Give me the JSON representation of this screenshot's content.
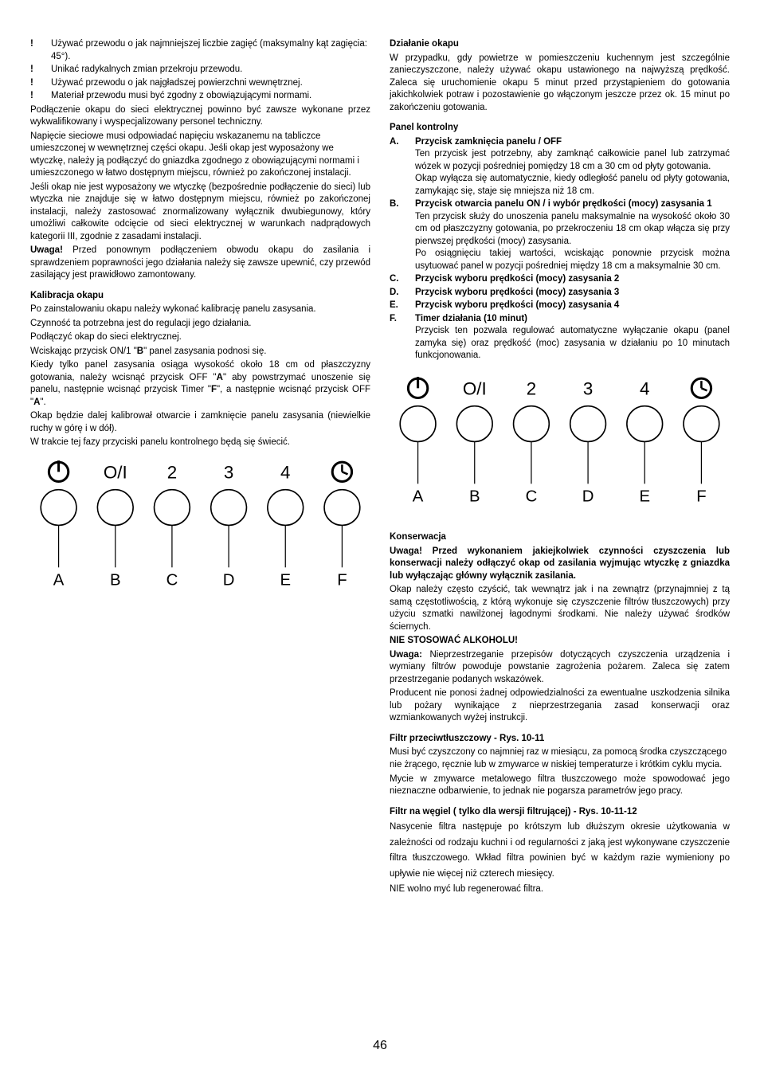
{
  "pageNumber": "46",
  "left": {
    "bullets": [
      "Używać przewodu o jak najmniejszej liczbie zagięć (maksymalny kąt zagięcia: 45°).",
      "Unikać radykalnych zmian przekroju przewodu.",
      "Używać przewodu o jak najgładszej powierzchni wewnętrznej.",
      "Materiał przewodu musi być zgodny z obowiązującymi normami."
    ],
    "p1": "Podłączenie okapu do sieci elektrycznej powinno być zawsze wykonane przez wykwalifikowany i wyspecjalizowany personel techniczny.",
    "p2": "Napięcie sieciowe musi odpowiadać napięciu wskazanemu na tabliczce umieszczonej w wewnętrznej części okapu. Jeśli okap jest wyposażony we wtyczkę, należy ją podłączyć do gniazdka zgodnego z obowiązującymi normami i umieszczonego w łatwo dostępnym miejscu, również po zakończonej instalacji.",
    "p3": "Jeśli okap nie jest wyposażony we wtyczkę (bezpośrednie podłączenie do sieci) lub wtyczka nie znajduje się w łatwo dostępnym miejscu, również po zakończonej instalacji, należy zastosować znormalizowany wyłącznik dwubiegunowy, który umożliwi całkowite odcięcie od sieci elektrycznej w warunkach nadprądowych kategorii III, zgodnie z zasadami instalacji.",
    "p4a": "Uwaga!",
    "p4b": " Przed ponownym podłączeniem obwodu okapu do zasilania i sprawdzeniem poprawności jego działania należy się zawsze upewnić, czy przewód zasilający jest prawidłowo zamontowany.",
    "kalib_h": "Kalibracja okapu",
    "kalib1": "Po zainstalowaniu okapu należy wykonać kalibrację panelu zasysania.",
    "kalib2": "Czynność ta potrzebna jest do regulacji jego działania.",
    "kalib3": "Podłączyć okap do sieci elektrycznej.",
    "kalib4a": "Wciskając przycisk ON/1 \"",
    "kalib4b": "B",
    "kalib4c": "\" panel zasysania podnosi się.",
    "kalib5a": "Kiedy tylko panel zasysania osiąga wysokość około 18 cm od płaszczyzny gotowania, należy wcisnąć przycisk OFF \"",
    "kalib5b": "A",
    "kalib5c": "\" aby powstrzymać unoszenie się panelu, następnie wcisnąć przycisk Timer \"",
    "kalib5d": "F",
    "kalib5e": "\", a następnie wcisnąć przycisk OFF \"",
    "kalib5f": "A",
    "kalib5g": "\".",
    "kalib6": "Okap będzie dalej kalibrował otwarcie i zamknięcie panelu zasysania (niewielkie ruchy w górę i w dół).",
    "kalib7": "W trakcie tej fazy przyciski panelu kontrolnego będą się świecić.",
    "panel": {
      "icons": [
        "power",
        "O/I",
        "2",
        "3",
        "4",
        "timer"
      ],
      "letters": [
        "A",
        "B",
        "C",
        "D",
        "E",
        "F"
      ],
      "stroke": "#000000",
      "iconFont": 22,
      "letterFont": 20
    }
  },
  "right": {
    "dzial_h": "Działanie okapu",
    "dzial_p": "W przypadku, gdy powietrze w pomieszczeniu kuchennym jest szczególnie zanieczyszczone, należy używać okapu ustawionego na najwyższą prędkość. Zaleca się uruchomienie okapu 5 minut przed przystąpieniem do gotowania jakichkolwiek potraw i pozostawienie go włączonym  jeszcze przez ok. 15 minut po zakończeniu gotowania.",
    "panel_h": "Panel kontrolny",
    "items": [
      {
        "l": "A.",
        "t": "Przycisk zamknięcia panelu / OFF",
        "b": "Ten przycisk jest potrzebny, aby zamknąć całkowicie panel lub zatrzymać wózek w pozycji pośredniej pomiędzy 18 cm a 30 cm od płyty gotowania.\nOkap wyłącza się automatycznie, kiedy odległość panelu od płyty gotowania, zamykając się, staje się mniejsza niż 18 cm."
      },
      {
        "l": "B.",
        "t": "Przycisk otwarcia panelu ON / i wybór prędkości (mocy) zasysania 1",
        "b": "Ten przycisk służy do unoszenia panelu maksymalnie na wysokość około 30 cm od płaszczyzny gotowania, po przekroczeniu 18 cm okap włącza się przy pierwszej prędkości (mocy) zasysania.\nPo osiągnięciu takiej wartości, wciskając ponownie przycisk można usytuować panel w pozycji pośredniej między 18 cm a maksymalnie 30 cm."
      },
      {
        "l": "C.",
        "t": "Przycisk wyboru prędkości (mocy) zasysania 2",
        "b": ""
      },
      {
        "l": "D.",
        "t": "Przycisk wyboru prędkości (mocy) zasysania 3",
        "b": ""
      },
      {
        "l": "E.",
        "t": "Przycisk wyboru prędkości (mocy) zasysania 4",
        "b": ""
      },
      {
        "l": "F.",
        "t": "Timer działania (10 minut)",
        "b": "Przycisk ten pozwala regulować automatyczne wyłączanie okapu (panel zamyka się) oraz prędkość (moc) zasysania w działaniu po 10 minutach funkcjonowania."
      }
    ],
    "kons_h": "Konserwacja",
    "kons_warn": "Uwaga! Przed wykonaniem jakiejkolwiek czynności czyszczenia lub konserwacji należy odłączyć okap od zasilania wyjmując wtyczkę z gniazdka lub wyłączając główny wyłącznik zasilania.",
    "kons_p1": "Okap należy często czyścić, tak wewnątrz jak i na zewnątrz (przynajmniej z tą samą częstotliwością, z którą wykonuje się czyszczenie filtrów tłuszczowych) przy użyciu szmatki nawilżonej łagodnymi środkami. Nie należy używać środków ściernych.",
    "kons_noalc": "NIE STOSOWAĆ ALKOHOLU!",
    "kons_p2a": "Uwaga:",
    "kons_p2b": " Nieprzestrzeganie przepisów dotyczących czyszczenia urządzenia i wymiany filtrów powoduje powstanie zagrożenia pożarem. Zaleca się zatem przestrzeganie podanych wskazówek.",
    "kons_p3": "Producent nie ponosi żadnej odpowiedzialności za ewentualne uszkodzenia silnika lub pożary wynikające z nieprzestrzegania zasad konserwacji oraz wzmiankowanych wyżej instrukcji.",
    "filtr1_h": "Filtr przeciwtłuszczowy - Rys. 10-11",
    "filtr1_p1": "Musi być czyszczony co najmniej raz w miesiącu, za pomocą środka czyszczącego nie żrącego, ręcznie lub w zmywarce w niskiej temperaturze i krótkim cyklu mycia.",
    "filtr1_p2": "Mycie w zmywarce metalowego filtra tłuszczowego może spowodować jego nieznaczne odbarwienie, to jednak nie pogarsza parametrów jego pracy.",
    "filtr2_h": "Filtr na węgiel ( tylko dla wersji filtrującej) - Rys. 10-11-12",
    "filtr2_p1": "Nasycenie filtra następuje po krótszym lub dłuższym okresie użytkowania w zależności od rodzaju kuchni i od regularności z jaką jest  wykonywane czyszczenie filtra tłuszczowego. Wkład filtra powinien być w każdym razie wymieniony po upływie nie więcej niż czterech miesięcy.",
    "filtr2_p2": "NIE wolno myć lub regenerować filtra."
  }
}
